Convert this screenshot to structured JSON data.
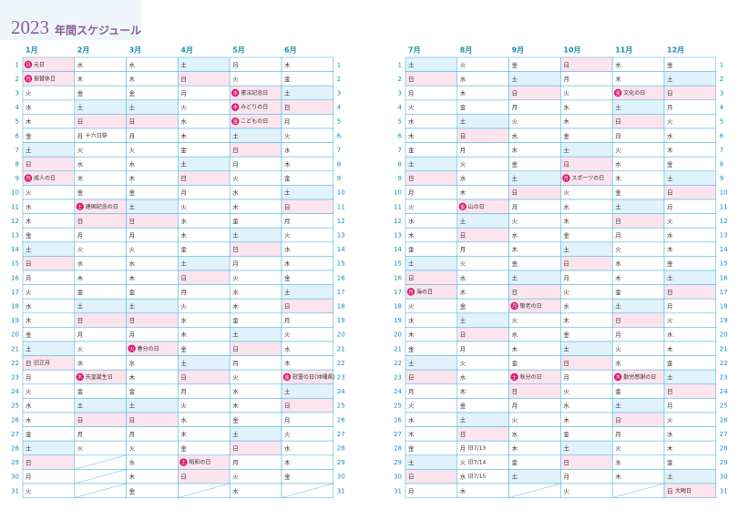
{
  "header": {
    "year": "2023",
    "title": "年間スケジュール"
  },
  "days": [
    1,
    2,
    3,
    4,
    5,
    6,
    7,
    8,
    9,
    10,
    11,
    12,
    13,
    14,
    15,
    16,
    17,
    18,
    19,
    20,
    21,
    22,
    23,
    24,
    25,
    26,
    27,
    28,
    29,
    30,
    31
  ],
  "fills": {
    "土": "#e0f2fb",
    "日": "#fce4ef"
  },
  "holiday_fill": "#fce4ef",
  "months": [
    {
      "label": "1月",
      "dow": "日月火水木金土日月火水木金土日月火水木金土日月火水木金土日月火",
      "notes": {
        "1": {
          "text": "元日",
          "holiday": true
        },
        "2": {
          "text": "振替休日",
          "holiday": true
        },
        "9": {
          "text": "成人の日",
          "holiday": true
        },
        "22": {
          "text": "旧正月",
          "holiday": false
        }
      }
    },
    {
      "label": "2月",
      "dow": "水木金土日月火水木金土日月火水木金土日月火水木金土日月火",
      "notes": {
        "6": {
          "text": "十六日祭",
          "holiday": false
        },
        "11": {
          "text": "建国記念の日",
          "holiday": true
        },
        "23": {
          "text": "天皇誕生日",
          "holiday": true
        }
      }
    },
    {
      "label": "3月",
      "dow": "水木金土日月火水木金土日月火水木金土日月火水木金土日月火水木金",
      "notes": {
        "21": {
          "text": "春分の日",
          "holiday": true
        }
      }
    },
    {
      "label": "4月",
      "dow": "土日月火水木金土日月火水木金土日月火水木金土日月火水木金土日",
      "notes": {
        "29": {
          "text": "昭和の日",
          "holiday": true
        }
      }
    },
    {
      "label": "5月",
      "dow": "月火水木金土日月火水木金土日月火水木金土日月火水木金土日月火水",
      "notes": {
        "3": {
          "text": "憲法記念日",
          "holiday": true
        },
        "4": {
          "text": "みどりの日",
          "holiday": true
        },
        "5": {
          "text": "こどもの日",
          "holiday": true
        }
      }
    },
    {
      "label": "6月",
      "dow": "木金土日月火水木金土日月火水木金土日月火水木金土日月火水木金",
      "notes": {
        "23": {
          "text": "慰霊の日(沖縄県)",
          "holiday": true
        }
      }
    },
    {
      "label": "7月",
      "dow": "土日月火水木金土日月火水木金土日月火水木金土日月火水木金土日月",
      "notes": {
        "17": {
          "text": "海の日",
          "holiday": true
        }
      }
    },
    {
      "label": "8月",
      "dow": "火水木金土日月火水木金土日月火水木金土日月火水木金土日月火水木",
      "notes": {
        "11": {
          "text": "山の日",
          "holiday": true
        },
        "28": {
          "text": "旧7/13",
          "holiday": false
        },
        "29": {
          "text": "旧7/14",
          "holiday": false
        },
        "30": {
          "text": "旧7/15",
          "holiday": false
        }
      }
    },
    {
      "label": "9月",
      "dow": "金土日月火水木金土日月火水木金土日月火水木金土日月火水木金土",
      "notes": {
        "18": {
          "text": "敬老の日",
          "holiday": true
        },
        "23": {
          "text": "秋分の日",
          "holiday": true
        }
      }
    },
    {
      "label": "10月",
      "dow": "日月火水木金土日月火水木金土日月火水木金土日月火水木金土日月火",
      "notes": {
        "9": {
          "text": "スポーツの日",
          "holiday": true
        }
      }
    },
    {
      "label": "11月",
      "dow": "水木金土日月火水木金土日月火水木金土日月火水木金土日月火水木",
      "notes": {
        "3": {
          "text": "文化の日",
          "holiday": true
        },
        "23": {
          "text": "勤労感謝の日",
          "holiday": true
        }
      }
    },
    {
      "label": "12月",
      "dow": "金土日月火水木金土日月火水木金土日月火水木金土日月火水木金土日",
      "notes": {
        "31": {
          "text": "大晦日",
          "holiday": false
        }
      }
    }
  ]
}
